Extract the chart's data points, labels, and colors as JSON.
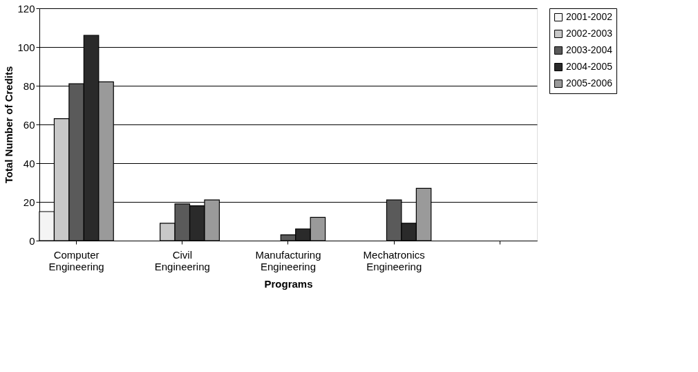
{
  "chart_data": {
    "type": "bar",
    "xlabel": "Programs",
    "ylabel": "Total Number of Credits",
    "categories": [
      "Computer Engineering",
      "Civil Engineering",
      "Manufacturing Engineering",
      "Mechatronics Engineering",
      null
    ],
    "series": [
      {
        "name": "2001-2002",
        "color": "#f4f4f4",
        "values": [
          15,
          null,
          null,
          null,
          null
        ]
      },
      {
        "name": "2002-2003",
        "color": "#c8c8c8",
        "values": [
          63,
          9,
          null,
          null,
          null
        ]
      },
      {
        "name": "2003-2004",
        "color": "#5a5a5a",
        "values": [
          81,
          19,
          3,
          21,
          null
        ]
      },
      {
        "name": "2004-2005",
        "color": "#2a2a2a",
        "values": [
          106,
          18,
          6,
          9,
          null
        ]
      },
      {
        "name": "2005-2006",
        "color": "#9a9a9a",
        "values": [
          82,
          21,
          12,
          27,
          null
        ]
      }
    ],
    "ylim": [
      0,
      120
    ],
    "yticks": [
      0,
      20,
      40,
      60,
      80,
      100,
      120
    ],
    "grid": "y",
    "legend": "right"
  }
}
